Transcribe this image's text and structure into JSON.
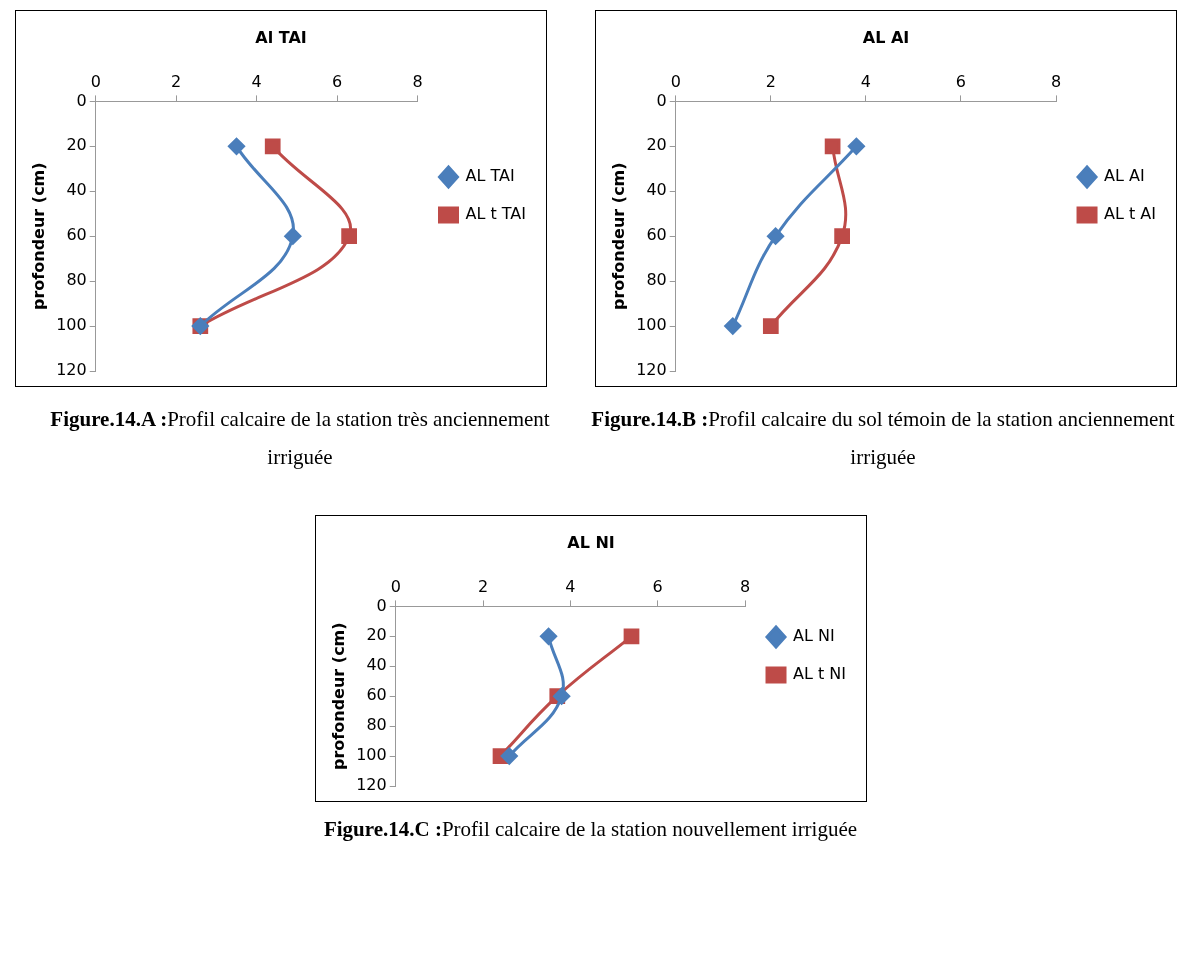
{
  "chart_data": [
    {
      "type": "line",
      "title": "Al TAI",
      "ylabel": "profondeur (cm)",
      "xlim": [
        0,
        8
      ],
      "xticks": [
        0,
        2,
        4,
        6,
        8
      ],
      "ylim": [
        120,
        0
      ],
      "yticks": [
        0,
        20,
        40,
        60,
        80,
        100,
        120
      ],
      "grid": false,
      "legend": "right",
      "annotations": [
        "Figure.14.A :Profil calcaire de la station très anciennement irriguée"
      ],
      "series": [
        {
          "name": "AL TAI",
          "color": "#4a7ebb",
          "marker": "diamond",
          "x": [
            3.5,
            4.9,
            2.6
          ],
          "values": [
            20,
            60,
            100
          ]
        },
        {
          "name": "AL t TAI",
          "color": "#be4b48",
          "marker": "square",
          "x": [
            4.4,
            6.3,
            2.6
          ],
          "values": [
            20,
            60,
            100
          ]
        }
      ]
    },
    {
      "type": "line",
      "title": "AL AI",
      "ylabel": "profondeur (cm)",
      "xlim": [
        0,
        8
      ],
      "xticks": [
        0,
        2,
        4,
        6,
        8
      ],
      "ylim": [
        120,
        0
      ],
      "yticks": [
        0,
        20,
        40,
        60,
        80,
        100,
        120
      ],
      "grid": false,
      "legend": "right",
      "annotations": [
        "Figure.14.B :Profil calcaire du sol témoin de la station anciennement irriguée"
      ],
      "series": [
        {
          "name": "AL AI",
          "color": "#4a7ebb",
          "marker": "diamond",
          "x": [
            3.8,
            2.1,
            1.2
          ],
          "values": [
            20,
            60,
            100
          ]
        },
        {
          "name": "AL t AI",
          "color": "#be4b48",
          "marker": "square",
          "x": [
            3.3,
            3.5,
            2.0
          ],
          "values": [
            20,
            60,
            100
          ]
        }
      ]
    },
    {
      "type": "line",
      "title": "AL NI",
      "ylabel": "profondeur (cm)",
      "xlim": [
        0,
        8
      ],
      "xticks": [
        0,
        2,
        4,
        6,
        8
      ],
      "ylim": [
        120,
        0
      ],
      "yticks": [
        0,
        20,
        40,
        60,
        80,
        100,
        120
      ],
      "grid": false,
      "legend": "right",
      "annotations": [
        "Figure.14.C :Profil calcaire de la station nouvellement irriguée"
      ],
      "series": [
        {
          "name": "AL NI",
          "color": "#4a7ebb",
          "marker": "diamond",
          "x": [
            3.5,
            3.8,
            2.6
          ],
          "values": [
            20,
            60,
            100
          ]
        },
        {
          "name": "AL t NI",
          "color": "#be4b48",
          "marker": "square",
          "x": [
            5.4,
            3.7,
            2.4
          ],
          "values": [
            20,
            60,
            100
          ]
        }
      ]
    }
  ]
}
